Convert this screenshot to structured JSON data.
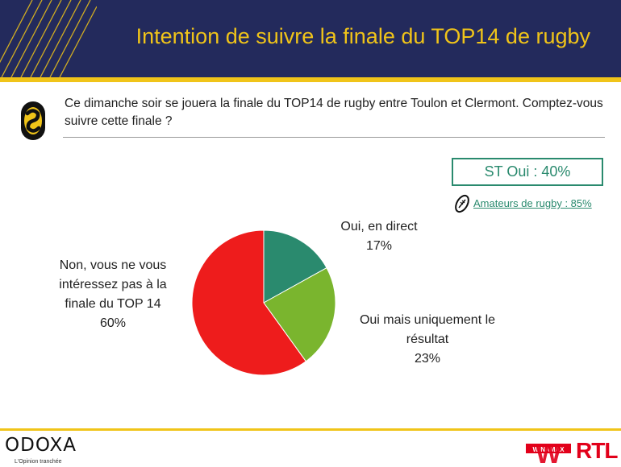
{
  "header": {
    "title": "Intention de suivre la finale du TOP14 de rugby"
  },
  "question": "Ce dimanche soir se jouera la finale du TOP14 de rugby entre Toulon et Clermont. Comptez-vous suivre cette finale ?",
  "summary": {
    "st_oui": "ST Oui : 40%",
    "amateurs_link": "Amateurs de rugby : 85%"
  },
  "chart_data": {
    "type": "pie",
    "slices": [
      {
        "label": "Oui, en direct",
        "value": 17,
        "display": "17%",
        "color": "#2a8a6e"
      },
      {
        "label": "Oui mais uniquement le résultat",
        "value": 23,
        "display": "23%",
        "color": "#7ab52e"
      },
      {
        "label": "Non, vous ne vous intéressez pas à la finale du TOP 14",
        "value": 60,
        "display": "60%",
        "color": "#ee1c1c"
      }
    ]
  },
  "labels": {
    "oui_direct": {
      "line1": "Oui, en direct",
      "pct": "17%"
    },
    "oui_resultat": {
      "line1": "Oui mais uniquement le",
      "line2": "résultat",
      "pct": "23%"
    },
    "non": {
      "line1": "Non, vous ne vous",
      "line2": "intéressez pas à la",
      "line3": "finale du TOP 14",
      "pct": "60%"
    }
  },
  "footer": {
    "brand": "ODOXA",
    "tagline": "L'Opinion tranchée",
    "winamax": "WINAMAX",
    "winamax_letter": "W",
    "rtl": "RTL"
  },
  "colors": {
    "navy": "#232a5c",
    "gold": "#f0c419",
    "green": "#2a8a6e"
  },
  "icons": {
    "logo": "odoxa-coin-icon",
    "ball": "rugby-ball-icon"
  }
}
